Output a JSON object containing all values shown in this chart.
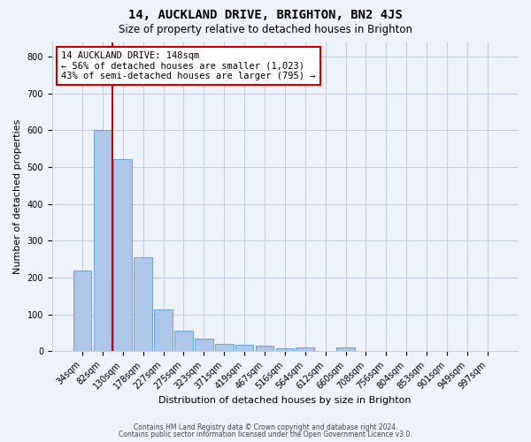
{
  "title": "14, AUCKLAND DRIVE, BRIGHTON, BN2 4JS",
  "subtitle": "Size of property relative to detached houses in Brighton",
  "xlabel": "Distribution of detached houses by size in Brighton",
  "ylabel": "Number of detached properties",
  "bar_labels": [
    "34sqm",
    "82sqm",
    "130sqm",
    "178sqm",
    "227sqm",
    "275sqm",
    "323sqm",
    "371sqm",
    "419sqm",
    "467sqm",
    "516sqm",
    "564sqm",
    "612sqm",
    "660sqm",
    "708sqm",
    "756sqm",
    "804sqm",
    "853sqm",
    "901sqm",
    "949sqm",
    "997sqm"
  ],
  "bar_values": [
    218,
    600,
    522,
    255,
    114,
    55,
    33,
    20,
    17,
    14,
    7,
    10,
    0,
    9,
    0,
    0,
    0,
    0,
    0,
    0,
    0
  ],
  "bar_color": "#aec6e8",
  "bar_edge_color": "#5b9bd5",
  "vline_x_index": 1.5,
  "vline_color": "#cc0000",
  "annotation_text": "14 AUCKLAND DRIVE: 148sqm\n← 56% of detached houses are smaller (1,023)\n43% of semi-detached houses are larger (795) →",
  "annotation_box_color": "#ffffff",
  "annotation_box_edge_color": "#cc0000",
  "ylim": [
    0,
    840
  ],
  "yticks": [
    0,
    100,
    200,
    300,
    400,
    500,
    600,
    700,
    800
  ],
  "title_fontsize": 10,
  "subtitle_fontsize": 8.5,
  "annotation_fontsize": 7.5,
  "axis_label_fontsize": 8,
  "tick_fontsize": 7,
  "background_color": "#eef2fb",
  "grid_color": "#c5cde0",
  "footer_line1": "Contains HM Land Registry data © Crown copyright and database right 2024.",
  "footer_line2": "Contains public sector information licensed under the Open Government Licence v3.0."
}
